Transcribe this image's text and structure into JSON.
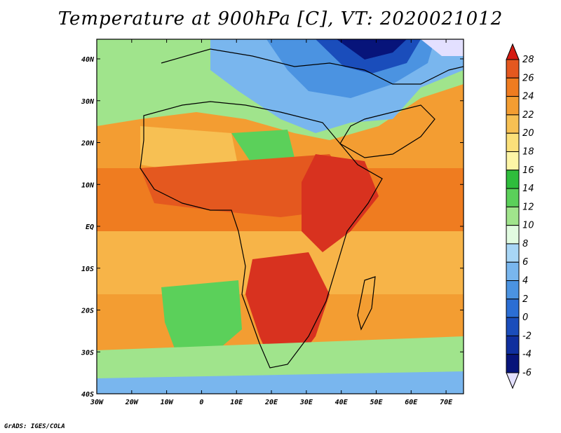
{
  "title": "Temperature at 900hPa [C], VT: 2020021012",
  "credit": "GrADS: IGES/COLA",
  "map": {
    "lon_ticks": [
      "30W",
      "20W",
      "10W",
      "0",
      "10E",
      "20E",
      "30E",
      "40E",
      "50E",
      "60E",
      "70E"
    ],
    "lat_ticks": [
      "40N",
      "30N",
      "20N",
      "10N",
      "EQ",
      "10S",
      "20S",
      "30S",
      "40S"
    ]
  },
  "colorbar": {
    "labels": [
      "28",
      "26",
      "24",
      "22",
      "20",
      "18",
      "16",
      "14",
      "12",
      "10",
      "8",
      "6",
      "4",
      "2",
      "0",
      "-2",
      "-4",
      "-6"
    ],
    "over_color": "#d51b12",
    "under_color": "#e3e0ff",
    "bands": [
      {
        "max": "28",
        "color": "#d8321f"
      },
      {
        "max": "26",
        "color": "#e4581f"
      },
      {
        "max": "24",
        "color": "#ef7c20"
      },
      {
        "max": "22",
        "color": "#f39d32"
      },
      {
        "max": "20",
        "color": "#f7c053"
      },
      {
        "max": "18",
        "color": "#fbe07a"
      },
      {
        "max": "16",
        "color": "#fdf5a6"
      },
      {
        "max": "14",
        "color": "#2fbd3c"
      },
      {
        "max": "12",
        "color": "#5bd05a"
      },
      {
        "max": "10",
        "color": "#a0e48c"
      },
      {
        "max": "8",
        "color": "#e1fbe0"
      },
      {
        "max": "6",
        "color": "#a8d6f6"
      },
      {
        "max": "4",
        "color": "#79b6ee"
      },
      {
        "max": "2",
        "color": "#4b93e1"
      },
      {
        "max": "0",
        "color": "#2b6ed4"
      },
      {
        "max": "-2",
        "color": "#1a4dbb"
      },
      {
        "max": "-4",
        "color": "#0f2f9e"
      },
      {
        "max": "-6",
        "color": "#07147a"
      }
    ]
  }
}
